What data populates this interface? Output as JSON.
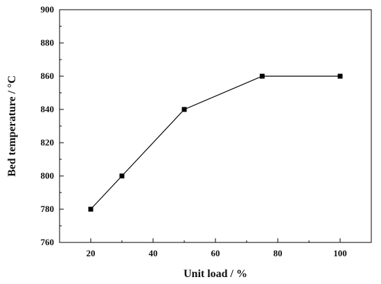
{
  "chart_data": {
    "type": "line",
    "title": "",
    "xlabel": "Unit load / %",
    "ylabel": "Bed temperature / °C",
    "x": [
      20,
      30,
      50,
      75,
      100
    ],
    "series": [
      {
        "values": [
          780,
          800,
          840,
          860,
          860
        ],
        "marker": "square",
        "color": "#000000"
      }
    ],
    "xlim": [
      10,
      110
    ],
    "ylim": [
      760,
      900
    ],
    "xticks": [
      20,
      40,
      60,
      80,
      100
    ],
    "yticks": [
      760,
      780,
      800,
      820,
      840,
      860,
      880,
      900
    ],
    "xtick_labels": [
      "20",
      "40",
      "60",
      "80",
      "100"
    ],
    "ytick_labels": [
      "760",
      "780",
      "800",
      "820",
      "840",
      "860",
      "880",
      "900"
    ],
    "grid": false,
    "legend": "none"
  }
}
